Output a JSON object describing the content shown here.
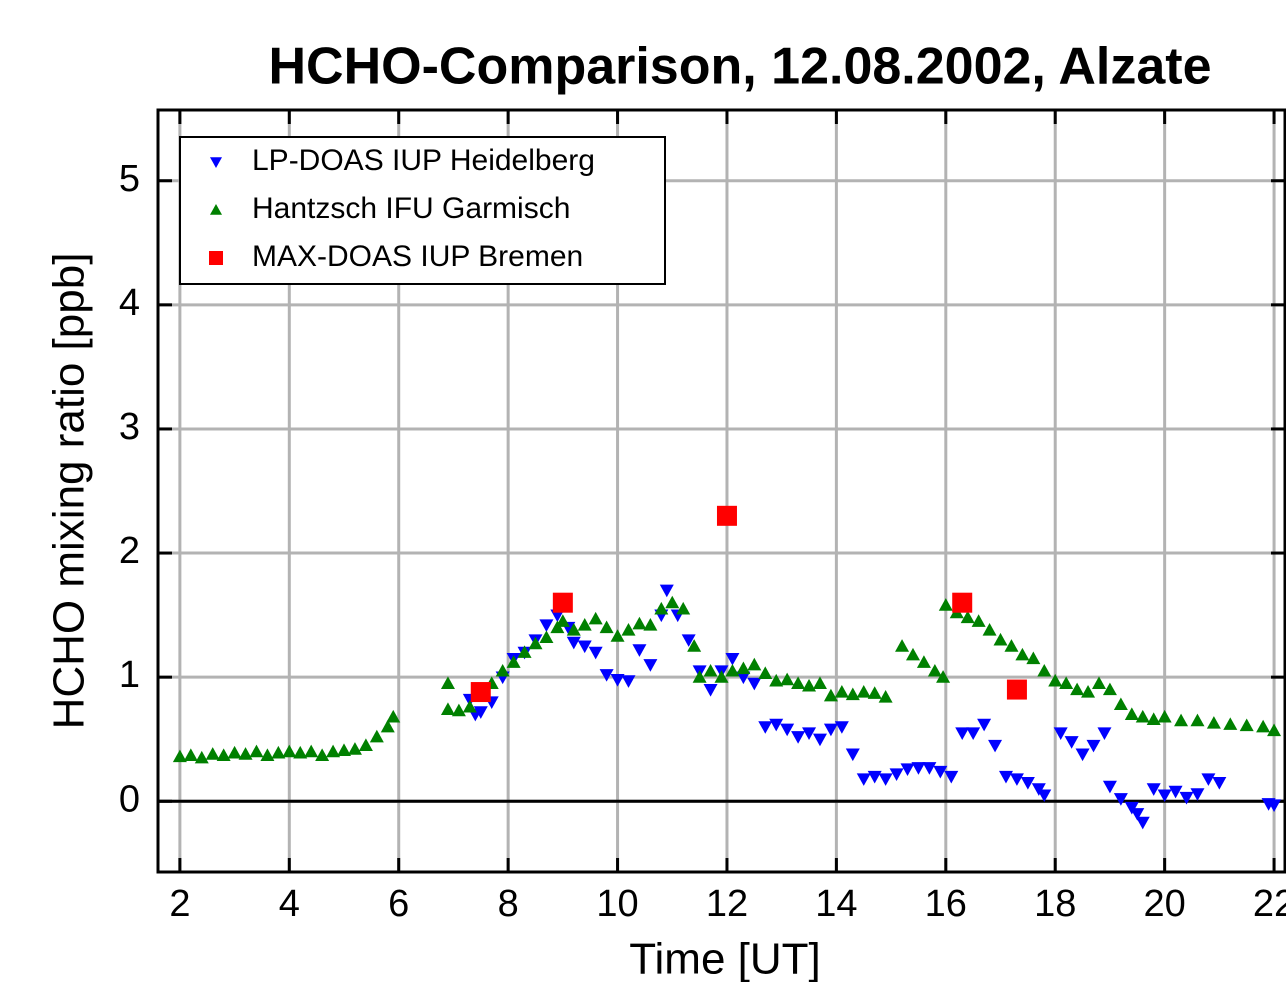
{
  "chart_data": {
    "type": "scatter",
    "title": "HCHO-Comparison, 12.08.2002, Alzate",
    "x_label": "Time [UT]",
    "y_label": "HCHO mixing ratio [ppb]",
    "xlim": [
      1.6,
      22.2
    ],
    "ylim": [
      -0.57,
      5.57
    ],
    "xticks": [
      2,
      4,
      6,
      8,
      10,
      12,
      14,
      16,
      18,
      20,
      22
    ],
    "yticks": [
      0,
      1,
      2,
      3,
      4,
      5
    ],
    "grid": true,
    "legend": "upper left",
    "series": [
      {
        "name": "LP-DOAS IUP Heidelberg",
        "color": "#0000ff",
        "marker": "triangle-down",
        "x": [
          7.3,
          7.4,
          7.5,
          7.7,
          7.9,
          8.1,
          8.3,
          8.5,
          8.7,
          8.9,
          9.1,
          9.2,
          9.4,
          9.6,
          9.8,
          10.0,
          10.2,
          10.4,
          10.6,
          10.8,
          10.9,
          11.1,
          11.3,
          11.5,
          11.7,
          11.9,
          12.1,
          12.3,
          12.5,
          12.7,
          12.9,
          13.1,
          13.3,
          13.5,
          13.7,
          13.9,
          14.1,
          14.3,
          14.5,
          14.7,
          14.9,
          15.1,
          15.3,
          15.5,
          15.7,
          15.9,
          16.1,
          16.3,
          16.5,
          16.7,
          16.9,
          17.1,
          17.3,
          17.5,
          17.7,
          17.8,
          18.1,
          18.3,
          18.5,
          18.7,
          18.9,
          19.0,
          19.2,
          19.4,
          19.5,
          19.6,
          19.8,
          20.0,
          20.2,
          20.4,
          20.6,
          20.8,
          21.0,
          21.9,
          22.0
        ],
        "values": [
          0.82,
          0.7,
          0.72,
          0.8,
          1.0,
          1.15,
          1.2,
          1.3,
          1.42,
          1.5,
          1.4,
          1.28,
          1.25,
          1.2,
          1.02,
          0.98,
          0.97,
          1.22,
          1.1,
          1.5,
          1.7,
          1.5,
          1.3,
          1.05,
          0.9,
          1.05,
          1.15,
          1.0,
          0.95,
          0.6,
          0.62,
          0.58,
          0.52,
          0.55,
          0.5,
          0.58,
          0.6,
          0.38,
          0.18,
          0.2,
          0.18,
          0.22,
          0.26,
          0.27,
          0.27,
          0.24,
          0.2,
          0.55,
          0.55,
          0.62,
          0.45,
          0.2,
          0.18,
          0.15,
          0.1,
          0.05,
          0.55,
          0.48,
          0.38,
          0.45,
          0.55,
          0.12,
          0.02,
          -0.05,
          -0.1,
          -0.17,
          0.1,
          0.05,
          0.08,
          0.03,
          0.06,
          0.18,
          0.15,
          -0.02,
          -0.03
        ]
      },
      {
        "name": "Hantzsch IFU Garmisch",
        "color": "#008000",
        "marker": "triangle-up",
        "x": [
          2.0,
          2.2,
          2.4,
          2.6,
          2.8,
          3.0,
          3.2,
          3.4,
          3.6,
          3.8,
          4.0,
          4.2,
          4.4,
          4.6,
          4.8,
          5.0,
          5.2,
          5.4,
          5.6,
          5.8,
          5.9,
          6.9,
          6.9,
          7.1,
          7.3,
          7.5,
          7.7,
          7.9,
          8.1,
          8.3,
          8.5,
          8.7,
          8.9,
          9.0,
          9.2,
          9.4,
          9.6,
          9.8,
          10.0,
          10.2,
          10.4,
          10.6,
          10.8,
          11.0,
          11.2,
          11.4,
          11.5,
          11.7,
          11.9,
          12.1,
          12.3,
          12.5,
          12.7,
          12.9,
          13.1,
          13.3,
          13.5,
          13.7,
          13.9,
          14.1,
          14.3,
          14.5,
          14.7,
          14.9,
          15.2,
          15.4,
          15.6,
          15.8,
          15.95,
          16.0,
          16.2,
          16.4,
          16.6,
          16.8,
          17.0,
          17.2,
          17.4,
          17.6,
          17.8,
          18.0,
          18.2,
          18.4,
          18.6,
          18.8,
          19.0,
          19.2,
          19.4,
          19.6,
          19.8,
          20.0,
          20.3,
          20.6,
          20.9,
          21.2,
          21.5,
          21.8,
          22.0
        ],
        "values": [
          0.36,
          0.37,
          0.35,
          0.38,
          0.37,
          0.39,
          0.38,
          0.4,
          0.37,
          0.39,
          0.4,
          0.39,
          0.4,
          0.37,
          0.4,
          0.41,
          0.42,
          0.45,
          0.52,
          0.6,
          0.68,
          0.95,
          0.74,
          0.73,
          0.76,
          0.85,
          0.95,
          1.05,
          1.12,
          1.2,
          1.27,
          1.32,
          1.4,
          1.45,
          1.38,
          1.42,
          1.47,
          1.4,
          1.33,
          1.38,
          1.43,
          1.42,
          1.55,
          1.6,
          1.55,
          1.25,
          1.0,
          1.05,
          1.0,
          1.05,
          1.07,
          1.1,
          1.03,
          0.97,
          0.98,
          0.95,
          0.93,
          0.95,
          0.85,
          0.88,
          0.86,
          0.88,
          0.87,
          0.84,
          1.25,
          1.18,
          1.12,
          1.05,
          1.0,
          1.58,
          1.52,
          1.48,
          1.45,
          1.38,
          1.3,
          1.25,
          1.18,
          1.15,
          1.05,
          0.97,
          0.95,
          0.9,
          0.88,
          0.95,
          0.9,
          0.78,
          0.7,
          0.68,
          0.66,
          0.68,
          0.65,
          0.65,
          0.63,
          0.62,
          0.61,
          0.6,
          0.57
        ]
      },
      {
        "name": "MAX-DOAS IUP Bremen",
        "color": "#ff0000",
        "marker": "square",
        "x": [
          7.5,
          9.0,
          12.0,
          16.3,
          17.3
        ],
        "values": [
          0.88,
          1.6,
          2.3,
          1.6,
          0.9
        ]
      }
    ]
  }
}
